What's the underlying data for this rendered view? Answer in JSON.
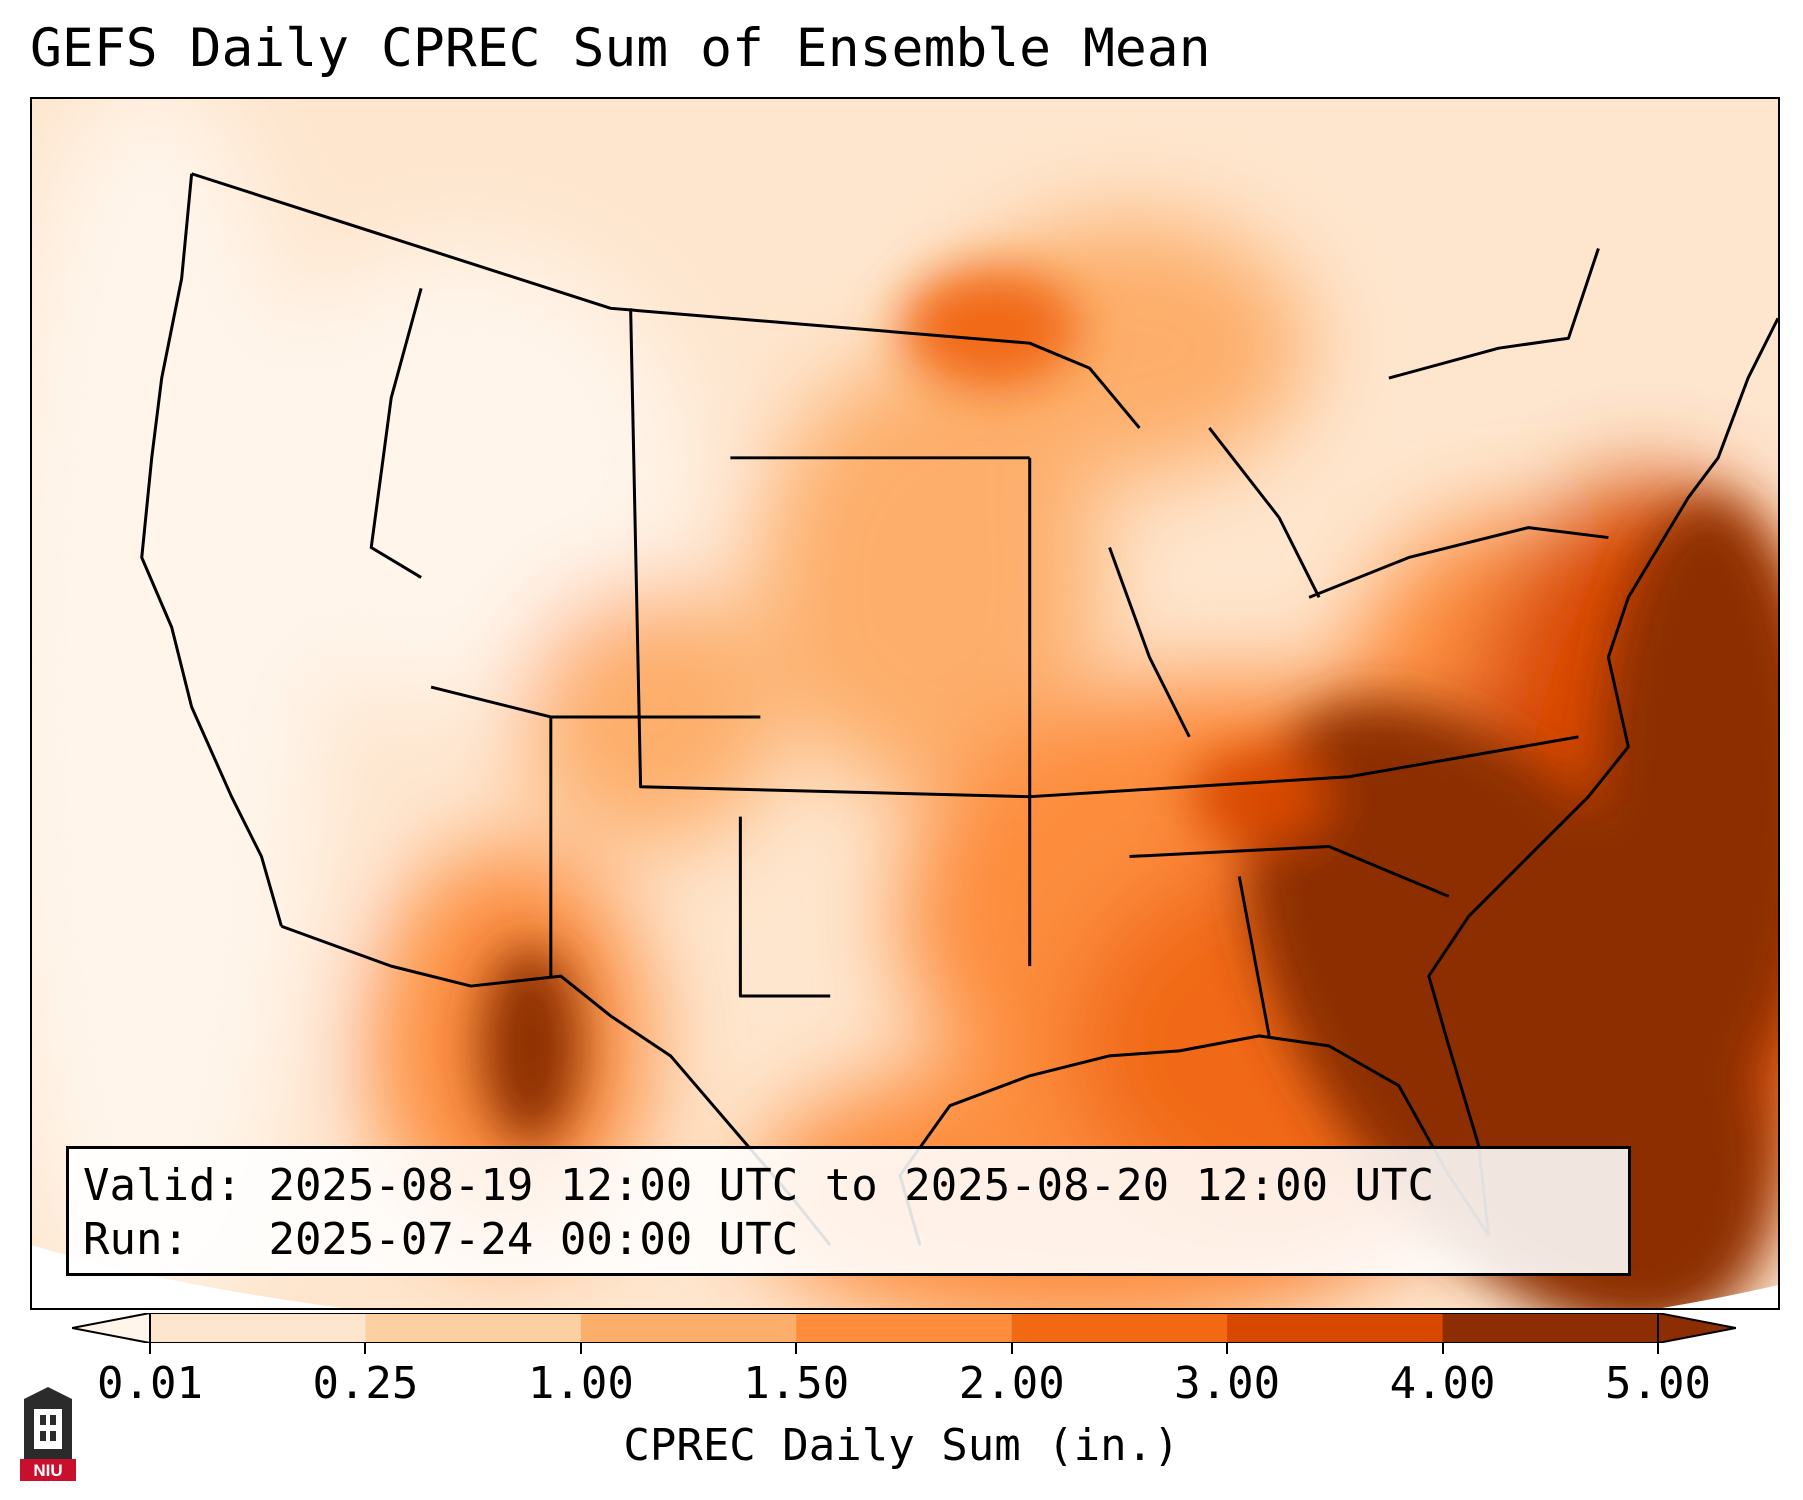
{
  "title": "GEFS Daily CPREC Sum of Ensemble Mean",
  "info": {
    "valid_label": "Valid:",
    "valid_value": "2025-08-19 12:00 UTC to 2025-08-20 12:00 UTC",
    "run_label": "Run:",
    "run_value": "2025-07-24 00:00 UTC"
  },
  "colorbar": {
    "title": "CPREC Daily Sum (in.)",
    "ticks": [
      "0.01",
      "0.25",
      "1.00",
      "1.50",
      "2.00",
      "3.00",
      "4.00",
      "5.00"
    ],
    "colors": [
      "#fff5eb",
      "#fee6ce",
      "#fdd0a2",
      "#fdae6b",
      "#fd8d3c",
      "#f16913",
      "#d94801",
      "#8c2d04"
    ],
    "extend": "both"
  },
  "map": {
    "projection": "Lambert Conformal (CONUS)",
    "field": "CPREC daily sum",
    "notable_features": [
      "Heavy precipitation off the Southeast Atlantic coast",
      "Moderate precipitation over the Southeast and Midwest",
      "Light precipitation over the West"
    ]
  },
  "logo": {
    "text": "NIU",
    "color": "#c8102e"
  }
}
